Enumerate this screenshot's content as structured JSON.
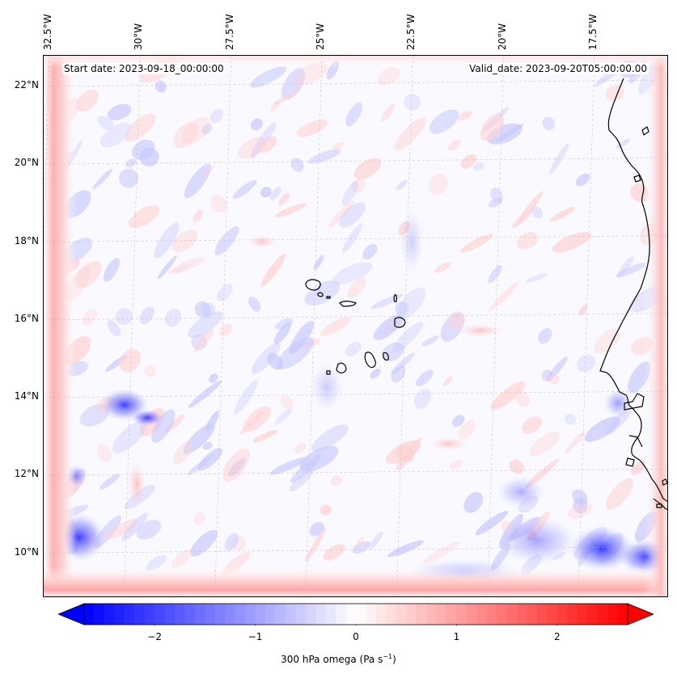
{
  "header": {
    "start_date": "Start date: 2023-09-18_00:00:00",
    "valid_date": "Valid_date: 2023-09-20T05:00:00.00"
  },
  "map": {
    "lon_labels": [
      {
        "text": "32.5°W",
        "value": -32.5
      },
      {
        "text": "30°W",
        "value": -30
      },
      {
        "text": "27.5°W",
        "value": -27.5
      },
      {
        "text": "25°W",
        "value": -25
      },
      {
        "text": "22.5°W",
        "value": -22.5
      },
      {
        "text": "20°W",
        "value": -20
      },
      {
        "text": "17.5°W",
        "value": -17.5
      }
    ],
    "lat_labels": [
      {
        "text": "22°N",
        "value": 22
      },
      {
        "text": "20°N",
        "value": 20
      },
      {
        "text": "18°N",
        "value": 18
      },
      {
        "text": "16°N",
        "value": 16
      },
      {
        "text": "14°N",
        "value": 14
      },
      {
        "text": "12°N",
        "value": 12
      },
      {
        "text": "10°N",
        "value": 10
      }
    ],
    "gridlines": true,
    "colormap": "bwr",
    "coastline_color": "#000000"
  },
  "colorbar": {
    "label_main": "300 hPa omega (Pa s",
    "label_exp": "−1",
    "label_close": ")",
    "vmin": -2.7,
    "vmax": 2.7,
    "ticks": [
      {
        "text": "−2",
        "value": -2
      },
      {
        "text": "−1",
        "value": -1
      },
      {
        "text": "0",
        "value": 0
      },
      {
        "text": "1",
        "value": 1
      },
      {
        "text": "2",
        "value": 2
      }
    ],
    "extend": "both",
    "low_color": "#0000ff",
    "mid_color": "#ffffff",
    "high_color": "#ff0000"
  }
}
